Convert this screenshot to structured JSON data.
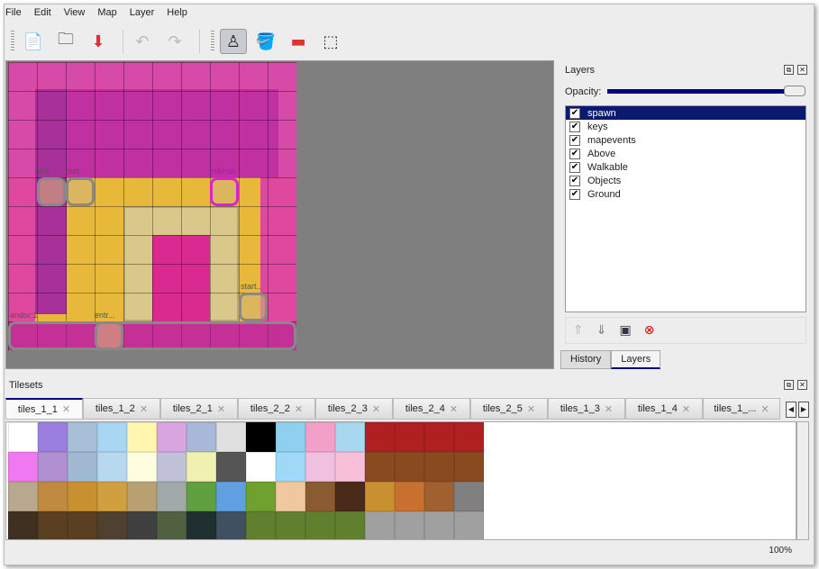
{
  "menu": [
    "File",
    "Edit",
    "View",
    "Map",
    "Layer",
    "Help"
  ],
  "toolbar": {
    "icons": [
      "new-file-icon",
      "open-icon",
      "save-icon",
      "undo-icon",
      "redo-icon",
      "stamp-brush-icon",
      "bucket-fill-icon",
      "eraser-icon",
      "rect-select-icon"
    ],
    "glyphs": [
      "📄",
      "🗀",
      "⬇",
      "↶",
      "↷",
      "♙",
      "🪣",
      "▬",
      "⬚"
    ],
    "active": "stamp-brush-icon"
  },
  "map": {
    "objects": [
      "bed",
      "rest",
      "mikhail",
      "start..",
      "andor:1",
      "entr..."
    ]
  },
  "layers_panel": {
    "title": "Layers",
    "opacity_label": "Opacity:",
    "opacity": 1.0,
    "layers": [
      {
        "name": "spawn",
        "visible": true,
        "selected": true
      },
      {
        "name": "keys",
        "visible": true
      },
      {
        "name": "mapevents",
        "visible": true
      },
      {
        "name": "Above",
        "visible": true
      },
      {
        "name": "Walkable",
        "visible": true
      },
      {
        "name": "Objects",
        "visible": true
      },
      {
        "name": "Ground",
        "visible": true
      }
    ],
    "tabs": [
      "History",
      "Layers"
    ],
    "active_tab": "Layers"
  },
  "tilesets": {
    "title": "Tilesets",
    "tabs": [
      "tiles_1_1",
      "tiles_1_2",
      "tiles_2_1",
      "tiles_2_2",
      "tiles_2_3",
      "tiles_2_4",
      "tiles_2_5",
      "tiles_1_3",
      "tiles_1_4",
      "tiles_1_..."
    ],
    "active": "tiles_1_1",
    "tile_colors": [
      [
        "#ffffff",
        "#9a7fe0",
        "#a7c0d8",
        "#a9d6f2",
        "#fff6b0",
        "#d9a5e0",
        "#a9b8d8",
        "#e0e0e0",
        "#000000",
        "#8fd0f0",
        "#f3a0c8",
        "#a8d8f0",
        "#b02020",
        "#b02020",
        "#b02020",
        "#b02020"
      ],
      [
        "#f078f0",
        "#b090d0",
        "#a0b8d0",
        "#b8d8f0",
        "#fffde0",
        "#c0c0d8",
        "#f0f0b0",
        "#555555",
        "#ffffff",
        "#a0d8f8",
        "#f0c0e0",
        "#f8c0d8",
        "#8a4a20",
        "#8a4a20",
        "#8a4a20",
        "#8a4a20"
      ],
      [
        "#b8a890",
        "#c08a40",
        "#c89030",
        "#d0a040",
        "#b8a070",
        "#a0a8a8",
        "#60a040",
        "#60a0e0",
        "#70a030",
        "#f0c8a0",
        "#8a5a30",
        "#4a2a18",
        "#c89030",
        "#c87030",
        "#a06030",
        "#808080"
      ],
      [
        "#403020",
        "#5a4020",
        "#5a4020",
        "#504030",
        "#404040",
        "#506040",
        "#203030",
        "#405060",
        "#608030",
        "#608030",
        "#608030",
        "#608030",
        "#a0a0a0",
        "#a0a0a0",
        "#a0a0a0",
        "#a0a0a0"
      ]
    ]
  },
  "status": {
    "zoom": "100%"
  }
}
